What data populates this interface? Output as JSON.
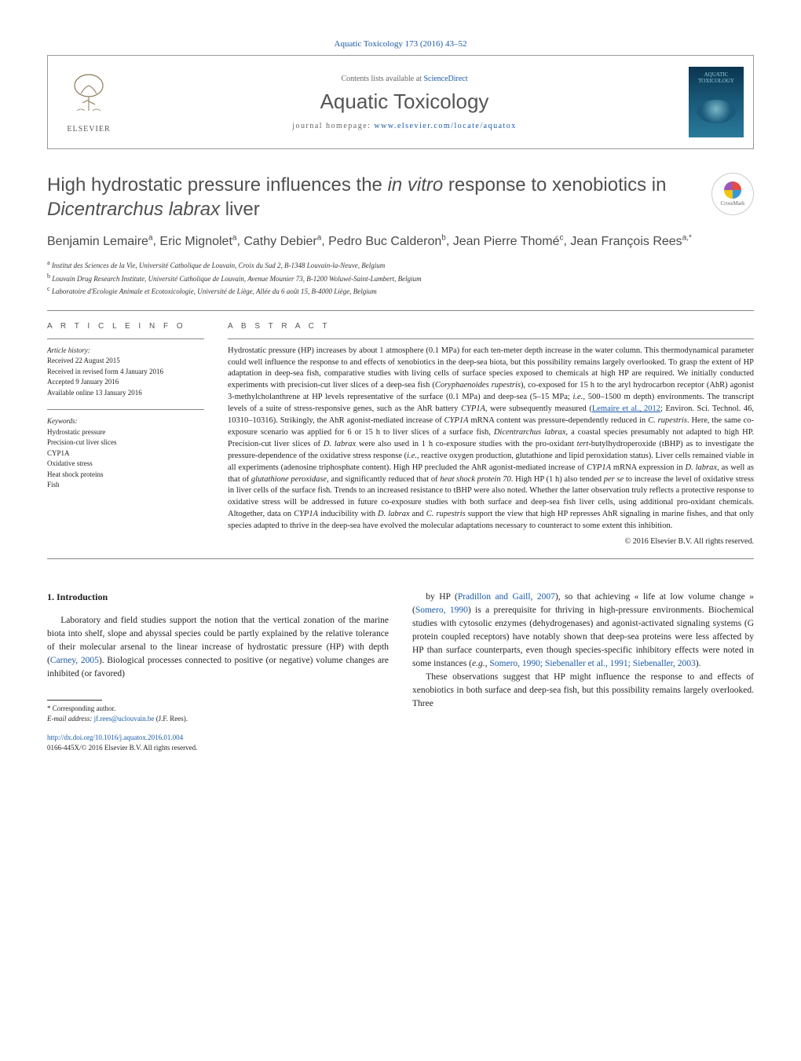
{
  "topCitation": {
    "journal": "Aquatic Toxicology",
    "volume": "173 (2016) 43–52",
    "link_color": "#1a5aa8"
  },
  "header": {
    "publisher": "ELSEVIER",
    "listsLine_prefix": "Contents lists available at ",
    "listsLine_link": "ScienceDirect",
    "journalName": "Aquatic Toxicology",
    "homepage_prefix": "journal homepage: ",
    "homepage_url": "www.elsevier.com/locate/aquatox",
    "coverText": "AQUATIC TOXICOLOGY"
  },
  "article": {
    "title_pre": "High hydrostatic pressure influences the ",
    "title_em1": "in vitro",
    "title_mid": " response to xenobiotics in ",
    "title_em2": "Dicentrarchus labrax",
    "title_post": " liver",
    "crossmark": "CrossMark"
  },
  "authors": [
    {
      "name": "Benjamin Lemaire",
      "affil": "a"
    },
    {
      "name": "Eric Mignolet",
      "affil": "a"
    },
    {
      "name": "Cathy Debier",
      "affil": "a"
    },
    {
      "name": "Pedro Buc Calderon",
      "affil": "b"
    },
    {
      "name": "Jean Pierre Thomé",
      "affil": "c"
    },
    {
      "name": "Jean François Rees",
      "affil": "a,*"
    }
  ],
  "affiliations": [
    {
      "key": "a",
      "text": "Institut des Sciences de la Vie, Université Catholique de Louvain, Croix du Sud 2, B-1348 Louvain-la-Neuve, Belgium"
    },
    {
      "key": "b",
      "text": "Louvain Drug Research Institute, Université Catholique de Louvain, Avenue Mounier 73, B-1200 Woluwé-Saint-Lambert, Belgium"
    },
    {
      "key": "c",
      "text": "Laboratoire d'Ecologie Animale et Ecotoxicologie, Université de Liège, Allée du 6 août 15, B-4000 Liège, Belgium"
    }
  ],
  "info": {
    "heading_info": "a r t i c l e   i n f o",
    "heading_abs": "a b s t r a c t",
    "history_label": "Article history:",
    "history": [
      "Received 22 August 2015",
      "Received in revised form 4 January 2016",
      "Accepted 9 January 2016",
      "Available online 13 January 2016"
    ],
    "keywords_label": "Keywords:",
    "keywords": [
      "Hydrostatic pressure",
      "Precision-cut liver slices",
      "CYP1A",
      "Oxidative stress",
      "Heat shock proteins",
      "Fish"
    ]
  },
  "abstract": {
    "body": "Hydrostatic pressure (HP) increases by about 1 atmosphere (0.1 MPa) for each ten-meter depth increase in the water column. This thermodynamical parameter could well influence the response to and effects of xenobiotics in the deep-sea biota, but this possibility remains largely overlooked. To grasp the extent of HP adaptation in deep-sea fish, comparative studies with living cells of surface species exposed to chemicals at high HP are required. We initially conducted experiments with precision-cut liver slices of a deep-sea fish (Coryphaenoides rupestris), co-exposed for 15 h to the aryl hydrocarbon receptor (AhR) agonist 3-methylcholanthrene at HP levels representative of the surface (0.1 MPa) and deep-sea (5–15 MPa; i.e., 500–1500 m depth) environments. The transcript levels of a suite of stress-responsive genes, such as the AhR battery CYP1A, were subsequently measured (Lemaire et al., 2012; Environ. Sci. Technol. 46, 10310–10316). Strikingly, the AhR agonist-mediated increase of CYP1A mRNA content was pressure-dependently reduced in C. rupestris. Here, the same co-exposure scenario was applied for 6 or 15 h to liver slices of a surface fish, Dicentrarchus labrax, a coastal species presumably not adapted to high HP. Precision-cut liver slices of D. labrax were also used in 1 h co-exposure studies with the pro-oxidant tert-butylhydroperoxide (tBHP) as to investigate the pressure-dependence of the oxidative stress response (i.e., reactive oxygen production, glutathione and lipid peroxidation status). Liver cells remained viable in all experiments (adenosine triphosphate content). High HP precluded the AhR agonist-mediated increase of CYP1A mRNA expression in D. labrax, as well as that of glutathione peroxidase, and significantly reduced that of heat shock protein 70. High HP (1 h) also tended per se to increase the level of oxidative stress in liver cells of the surface fish. Trends to an increased resistance to tBHP were also noted. Whether the latter observation truly reflects a protective response to oxidative stress will be addressed in future co-exposure studies with both surface and deep-sea fish liver cells, using additional pro-oxidant chemicals. Altogether, data on CYP1A inducibility with D. labrax and C. rupestris support the view that high HP represses AhR signaling in marine fishes, and that only species adapted to thrive in the deep-sea have evolved the molecular adaptations necessary to counteract to some extent this inhibition.",
    "copyright": "© 2016 Elsevier B.V. All rights reserved."
  },
  "body": {
    "section_number": "1.",
    "section_title": "Introduction",
    "para1_pre": "Laboratory and field studies support the notion that the vertical zonation of the marine biota into shelf, slope and abyssal species could be partly explained by the relative tolerance of their molecular arsenal to the linear increase of hydrostatic pressure (HP) with depth (",
    "para1_link1": "Carney, 2005",
    "para1_post1": "). Biological processes connected to positive (or negative) volume changes are inhibited (or favored)",
    "para2_pre": "by HP (",
    "para2_link1": "Pradillon and Gaill, 2007",
    "para2_mid1": "), so that achieving « life at low volume change » (",
    "para2_link2": "Somero, 1990",
    "para2_mid2": ") is a prerequisite for thriving in high-pressure environments. Biochemical studies with cytosolic enzymes (dehydrogenases) and agonist-activated signaling systems (G protein coupled receptors) have notably shown that deep-sea proteins were less affected by HP than surface counterparts, even though species-specific inhibitory effects were noted in some instances (",
    "para2_em": "e.g.,",
    "para2_link3": " Somero, 1990; Siebenaller et al., 1991; Siebenaller, 2003",
    "para2_post": ").",
    "para3": "These observations suggest that HP might influence the response to and effects of xenobiotics in both surface and deep-sea fish, but this possibility remains largely overlooked. Three"
  },
  "footer": {
    "corr_label": "* Corresponding author.",
    "email_label": "E-mail address: ",
    "email": "jf.rees@uclouvain.be",
    "email_person": " (J.F. Rees).",
    "doi_label": "http://dx.doi.org/",
    "doi": "10.1016/j.aquatox.2016.01.004",
    "issn": "0166-445X/© 2016 Elsevier B.V. All rights reserved."
  },
  "colors": {
    "link": "#1a5aa8",
    "text": "#231f20",
    "heading_gray": "#505050",
    "rule": "#888888",
    "background": "#ffffff"
  },
  "typography": {
    "body_fontsize_pt": 9,
    "title_fontsize_pt": 18,
    "authors_fontsize_pt": 12,
    "abstract_fontsize_pt": 8,
    "info_heading_letterspacing": 4
  }
}
